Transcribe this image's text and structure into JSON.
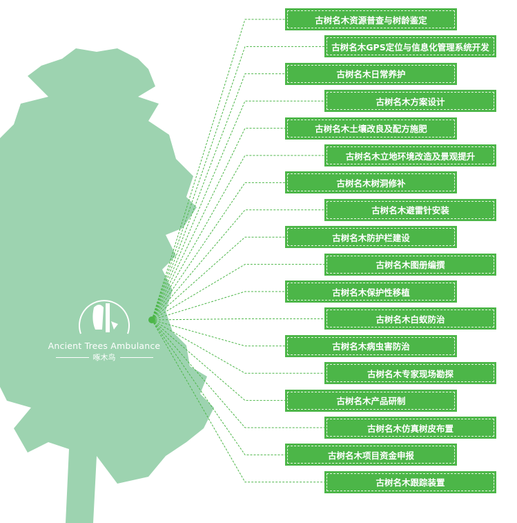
{
  "logo": {
    "english": "Ancient Trees Ambulance",
    "chinese": "啄木鸟"
  },
  "colors": {
    "box": "#4cb648",
    "tree": "#9dd3b0",
    "connector": "#4cb648"
  },
  "services": [
    "古树名木资源普查与树龄鉴定",
    "古树名木GPS定位与信息化管理系统开发",
    "古树名木日常养护",
    "古树名木方案设计",
    "古树名木土壤改良及配方施肥",
    "古树名木立地环境改造及景观提升",
    "古树名木树洞修补",
    "古树名木避雷针安装",
    "古树名木防护栏建设",
    "古树名木图册编撰",
    "古树名木保护性移植",
    "古树名木白蚁防治",
    "古树名木病虫害防治",
    "古树名木专家现场勘探",
    "古树名木产品研制",
    "古树名木仿真树皮布置",
    "古树名木项目资金申报",
    "古树名木跟踪装置"
  ]
}
